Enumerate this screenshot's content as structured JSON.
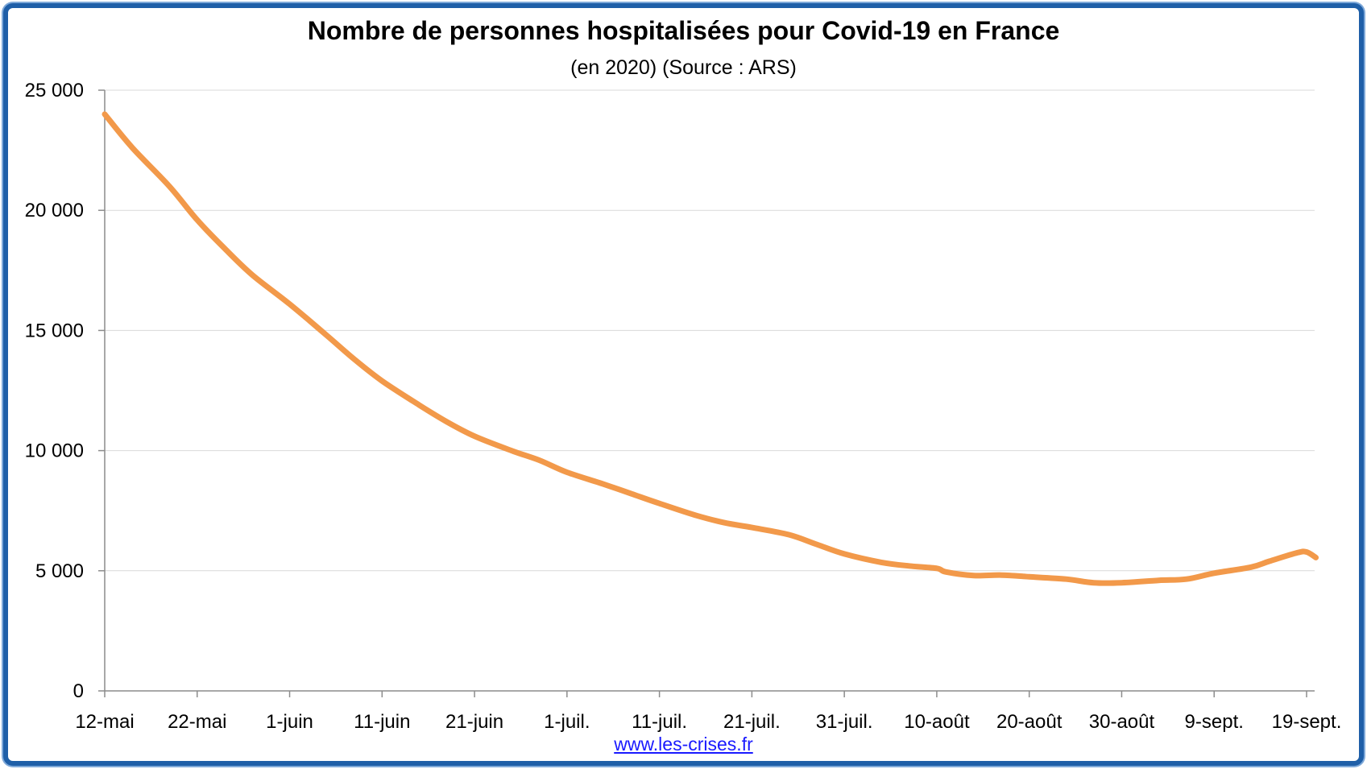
{
  "title": "Nombre de personnes hospitalisées pour Covid-19 en France",
  "subtitle": "(en 2020) (Source : ARS)",
  "source_link": "www.les-crises.fr",
  "colors": {
    "line": "#f2994a",
    "border": "#1f5fa8",
    "grid": "#d9d9d9",
    "axis": "#8c8c8c"
  },
  "chart_data": {
    "type": "line",
    "title": "Nombre de personnes hospitalisées pour Covid-19 en France",
    "subtitle": "(en 2020) (Source : ARS)",
    "xlabel": "",
    "ylabel": "",
    "ylim": [
      0,
      25000
    ],
    "y_ticks": [
      {
        "value": 0,
        "label": "0"
      },
      {
        "value": 5000,
        "label": "5 000"
      },
      {
        "value": 10000,
        "label": "10 000"
      },
      {
        "value": 15000,
        "label": "15 000"
      },
      {
        "value": 20000,
        "label": "20 000"
      },
      {
        "value": 25000,
        "label": "25 000"
      }
    ],
    "x_ticks": [
      {
        "date": "2020-05-12",
        "label": "12-mai"
      },
      {
        "date": "2020-05-22",
        "label": "22-mai"
      },
      {
        "date": "2020-06-01",
        "label": "1-juin"
      },
      {
        "date": "2020-06-11",
        "label": "11-juin"
      },
      {
        "date": "2020-06-21",
        "label": "21-juin"
      },
      {
        "date": "2020-07-01",
        "label": "1-juil."
      },
      {
        "date": "2020-07-11",
        "label": "11-juil."
      },
      {
        "date": "2020-07-21",
        "label": "21-juil."
      },
      {
        "date": "2020-07-31",
        "label": "31-juil."
      },
      {
        "date": "2020-08-10",
        "label": "10-août"
      },
      {
        "date": "2020-08-20",
        "label": "20-août"
      },
      {
        "date": "2020-08-30",
        "label": "30-août"
      },
      {
        "date": "2020-09-09",
        "label": "9-sept."
      },
      {
        "date": "2020-09-19",
        "label": "19-sept."
      }
    ],
    "grid": true,
    "legend": "none",
    "series": [
      {
        "x": [
          "2020-05-12",
          "2020-05-15",
          "2020-05-19",
          "2020-05-22",
          "2020-05-25",
          "2020-05-28",
          "2020-06-01",
          "2020-06-05",
          "2020-06-08",
          "2020-06-11",
          "2020-06-15",
          "2020-06-18",
          "2020-06-21",
          "2020-06-25",
          "2020-06-28",
          "2020-07-01",
          "2020-07-05",
          "2020-07-08",
          "2020-07-11",
          "2020-07-15",
          "2020-07-18",
          "2020-07-21",
          "2020-07-25",
          "2020-07-28",
          "2020-07-31",
          "2020-08-04",
          "2020-08-07",
          "2020-08-10",
          "2020-08-11",
          "2020-08-14",
          "2020-08-17",
          "2020-08-20",
          "2020-08-24",
          "2020-08-27",
          "2020-08-30",
          "2020-09-03",
          "2020-09-06",
          "2020-09-09",
          "2020-09-13",
          "2020-09-15",
          "2020-09-18",
          "2020-09-19",
          "2020-09-20"
        ],
        "y": [
          24000,
          22600,
          21000,
          19600,
          18400,
          17300,
          16100,
          14800,
          13800,
          12900,
          11900,
          11200,
          10600,
          10000,
          9600,
          9100,
          8600,
          8200,
          7800,
          7300,
          7000,
          6800,
          6500,
          6100,
          5700,
          5350,
          5200,
          5100,
          4950,
          4800,
          4820,
          4750,
          4650,
          4500,
          4500,
          4600,
          4650,
          4900,
          5150,
          5400,
          5750,
          5780,
          5550
        ]
      }
    ]
  }
}
